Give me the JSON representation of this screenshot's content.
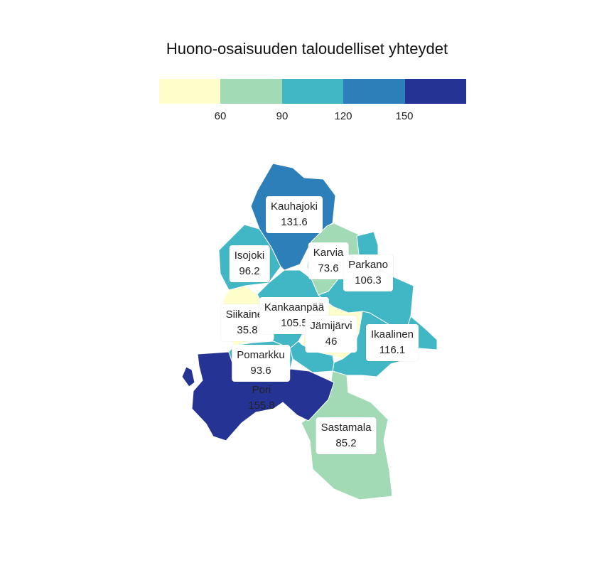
{
  "title": "Huono-osaisuuden taloudelliset yhteydet",
  "legend": {
    "colors": [
      "#ffffcc",
      "#a1dab4",
      "#41b6c4",
      "#2c7fb8",
      "#253494"
    ],
    "ticks": [
      "60",
      "90",
      "120",
      "150"
    ]
  },
  "regions": [
    {
      "name": "Kauhajoki",
      "value": "131.6",
      "color": "#2c7fb8"
    },
    {
      "name": "Isojoki",
      "value": "96.2",
      "color": "#41b6c4"
    },
    {
      "name": "Karvia",
      "value": "73.6",
      "color": "#a1dab4"
    },
    {
      "name": "Parkano",
      "value": "106.3",
      "color": "#41b6c4"
    },
    {
      "name": "Siikainen",
      "value": "35.8",
      "color": "#ffffcc"
    },
    {
      "name": "Kankaanpää",
      "value": "105.5",
      "color": "#41b6c4"
    },
    {
      "name": "Jämijärvi",
      "value": "46",
      "color": "#ffffcc"
    },
    {
      "name": "Ikaalinen",
      "value": "116.1",
      "color": "#41b6c4"
    },
    {
      "name": "Pomarkku",
      "value": "93.6",
      "color": "#41b6c4"
    },
    {
      "name": "Pori",
      "value": "155.8",
      "color": "#253494"
    },
    {
      "name": "Sastamala",
      "value": "85.2",
      "color": "#a1dab4"
    }
  ]
}
